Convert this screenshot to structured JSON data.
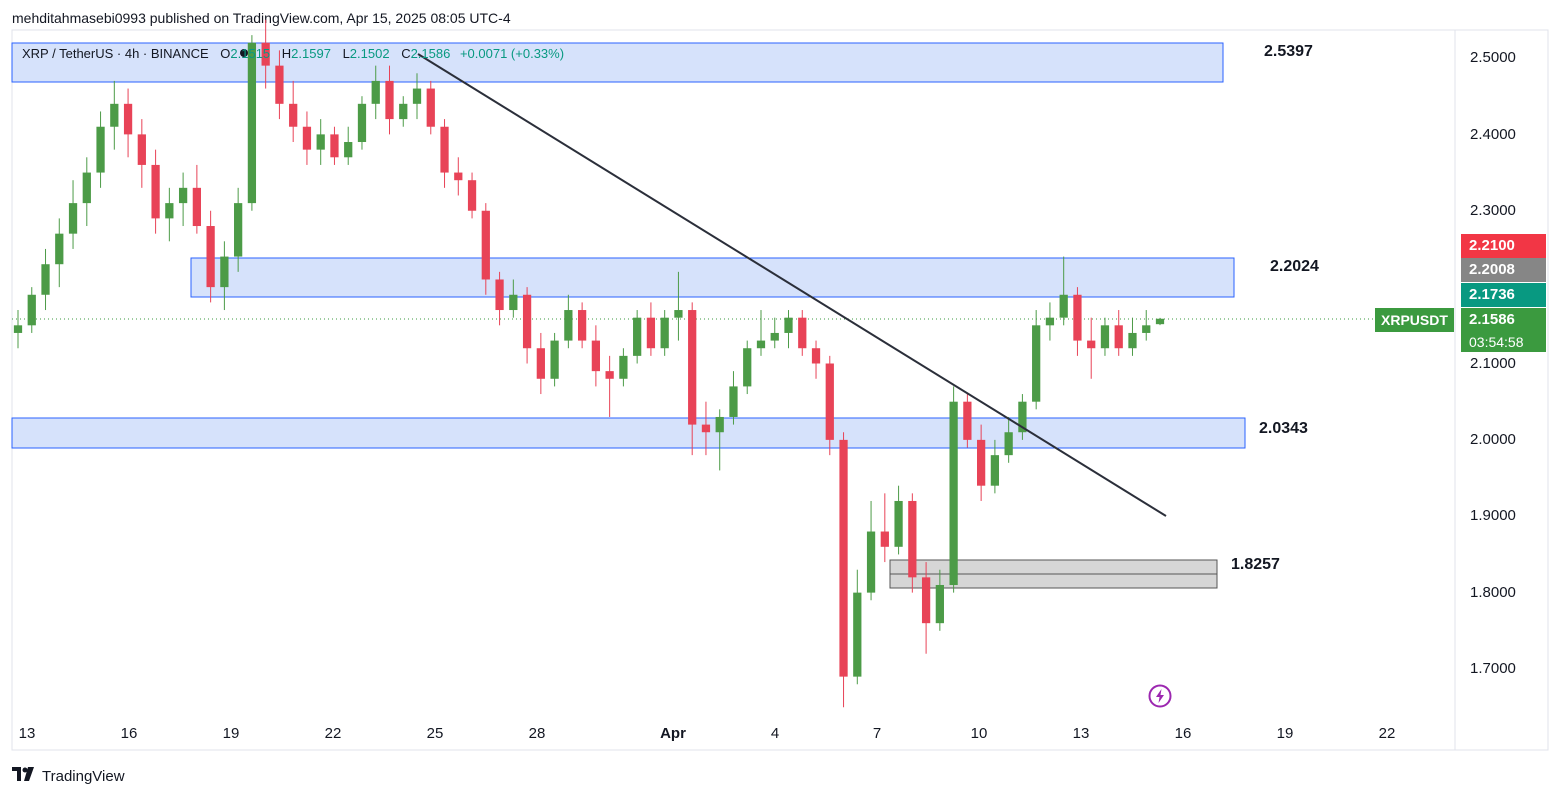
{
  "header": {
    "publisher": "mehditahmasebi0993 published on TradingView.com, Apr 15, 2025 08:05 UTC-4"
  },
  "legend": {
    "symbol": "XRP / TetherUS · 4h · BINANCE",
    "open_label": "O",
    "open": "2.1515",
    "high_label": "H",
    "high": "2.1597",
    "low_label": "L",
    "low": "2.1502",
    "close_label": "C",
    "close": "2.1586",
    "change": "+0.0071 (+0.33%)"
  },
  "price_axis": {
    "ticks": [
      "2.5000",
      "2.4000",
      "2.3000",
      "2.1000",
      "2.0000",
      "1.9000",
      "1.8000",
      "1.7000"
    ],
    "tags": {
      "red": "2.2100",
      "gray": "2.2008",
      "teal": "2.1736",
      "current": "2.1586",
      "symbol": "XRPUSDT",
      "countdown": "03:54:58"
    }
  },
  "time_axis": {
    "ticks": [
      "13",
      "16",
      "19",
      "22",
      "25",
      "28",
      "Apr",
      "4",
      "7",
      "10",
      "13",
      "16",
      "19",
      "22"
    ]
  },
  "zones": {
    "labels": [
      "2.5397",
      "2.2024",
      "2.0343",
      "1.8257"
    ]
  },
  "colors": {
    "up": "#4c9b47",
    "down": "#e84357",
    "zone_fill": "#d6e2fb",
    "zone_border": "#2962ff",
    "support_fill": "#d6d6d6",
    "trendline": "#2b2f3a",
    "price_green": "#3b9a3f",
    "price_red": "#f23645",
    "price_gray": "#868686",
    "price_teal": "#089981"
  },
  "footer": {
    "brand": "TradingView"
  },
  "chart_data": {
    "type": "candlestick",
    "symbol": "XRP / TetherUS",
    "timeframe": "4h",
    "exchange": "BINANCE",
    "y_range": [
      1.64,
      2.54
    ],
    "x_ticks": [
      "13",
      "16",
      "19",
      "22",
      "25",
      "28",
      "Apr",
      "4",
      "7",
      "10",
      "13",
      "16",
      "19",
      "22"
    ],
    "zones": [
      {
        "label": "2.5397",
        "top": 2.5397,
        "bottom": 2.49,
        "color": "blue"
      },
      {
        "label": "2.2024",
        "top": 2.2024,
        "bottom": 2.15,
        "color": "blue"
      },
      {
        "label": "2.0343",
        "top": 2.0343,
        "bottom": 1.995,
        "color": "blue"
      },
      {
        "label": "1.8257",
        "top": 1.8257,
        "bottom": 1.805,
        "color": "gray"
      }
    ],
    "trendline": {
      "from": {
        "date": "Mar 24",
        "value": 2.52
      },
      "to": {
        "date": "Apr 16",
        "value": 1.9
      }
    },
    "ohlc": [
      {
        "o": 2.14,
        "h": 2.17,
        "l": 2.12,
        "c": 2.15
      },
      {
        "o": 2.15,
        "h": 2.2,
        "l": 2.14,
        "c": 2.19
      },
      {
        "o": 2.19,
        "h": 2.25,
        "l": 2.17,
        "c": 2.23
      },
      {
        "o": 2.23,
        "h": 2.29,
        "l": 2.2,
        "c": 2.27
      },
      {
        "o": 2.27,
        "h": 2.34,
        "l": 2.25,
        "c": 2.31
      },
      {
        "o": 2.31,
        "h": 2.37,
        "l": 2.28,
        "c": 2.35
      },
      {
        "o": 2.35,
        "h": 2.43,
        "l": 2.33,
        "c": 2.41
      },
      {
        "o": 2.41,
        "h": 2.47,
        "l": 2.38,
        "c": 2.44
      },
      {
        "o": 2.44,
        "h": 2.46,
        "l": 2.37,
        "c": 2.4
      },
      {
        "o": 2.4,
        "h": 2.42,
        "l": 2.33,
        "c": 2.36
      },
      {
        "o": 2.36,
        "h": 2.38,
        "l": 2.27,
        "c": 2.29
      },
      {
        "o": 2.29,
        "h": 2.33,
        "l": 2.26,
        "c": 2.31
      },
      {
        "o": 2.31,
        "h": 2.35,
        "l": 2.28,
        "c": 2.33
      },
      {
        "o": 2.33,
        "h": 2.36,
        "l": 2.27,
        "c": 2.28
      },
      {
        "o": 2.28,
        "h": 2.3,
        "l": 2.18,
        "c": 2.2
      },
      {
        "o": 2.2,
        "h": 2.26,
        "l": 2.17,
        "c": 2.24
      },
      {
        "o": 2.24,
        "h": 2.33,
        "l": 2.22,
        "c": 2.31
      },
      {
        "o": 2.31,
        "h": 2.53,
        "l": 2.3,
        "c": 2.52
      },
      {
        "o": 2.52,
        "h": 2.56,
        "l": 2.46,
        "c": 2.49
      },
      {
        "o": 2.49,
        "h": 2.51,
        "l": 2.42,
        "c": 2.44
      },
      {
        "o": 2.44,
        "h": 2.47,
        "l": 2.39,
        "c": 2.41
      },
      {
        "o": 2.41,
        "h": 2.43,
        "l": 2.36,
        "c": 2.38
      },
      {
        "o": 2.38,
        "h": 2.42,
        "l": 2.36,
        "c": 2.4
      },
      {
        "o": 2.4,
        "h": 2.41,
        "l": 2.36,
        "c": 2.37
      },
      {
        "o": 2.37,
        "h": 2.41,
        "l": 2.36,
        "c": 2.39
      },
      {
        "o": 2.39,
        "h": 2.45,
        "l": 2.38,
        "c": 2.44
      },
      {
        "o": 2.44,
        "h": 2.49,
        "l": 2.42,
        "c": 2.47
      },
      {
        "o": 2.47,
        "h": 2.49,
        "l": 2.4,
        "c": 2.42
      },
      {
        "o": 2.42,
        "h": 2.45,
        "l": 2.41,
        "c": 2.44
      },
      {
        "o": 2.44,
        "h": 2.48,
        "l": 2.42,
        "c": 2.46
      },
      {
        "o": 2.46,
        "h": 2.47,
        "l": 2.4,
        "c": 2.41
      },
      {
        "o": 2.41,
        "h": 2.42,
        "l": 2.33,
        "c": 2.35
      },
      {
        "o": 2.35,
        "h": 2.37,
        "l": 2.32,
        "c": 2.34
      },
      {
        "o": 2.34,
        "h": 2.35,
        "l": 2.29,
        "c": 2.3
      },
      {
        "o": 2.3,
        "h": 2.31,
        "l": 2.19,
        "c": 2.21
      },
      {
        "o": 2.21,
        "h": 2.22,
        "l": 2.15,
        "c": 2.17
      },
      {
        "o": 2.17,
        "h": 2.21,
        "l": 2.16,
        "c": 2.19
      },
      {
        "o": 2.19,
        "h": 2.2,
        "l": 2.1,
        "c": 2.12
      },
      {
        "o": 2.12,
        "h": 2.14,
        "l": 2.06,
        "c": 2.08
      },
      {
        "o": 2.08,
        "h": 2.14,
        "l": 2.07,
        "c": 2.13
      },
      {
        "o": 2.13,
        "h": 2.19,
        "l": 2.12,
        "c": 2.17
      },
      {
        "o": 2.17,
        "h": 2.18,
        "l": 2.12,
        "c": 2.13
      },
      {
        "o": 2.13,
        "h": 2.15,
        "l": 2.07,
        "c": 2.09
      },
      {
        "o": 2.09,
        "h": 2.11,
        "l": 2.03,
        "c": 2.08
      },
      {
        "o": 2.08,
        "h": 2.12,
        "l": 2.07,
        "c": 2.11
      },
      {
        "o": 2.11,
        "h": 2.17,
        "l": 2.1,
        "c": 2.16
      },
      {
        "o": 2.16,
        "h": 2.18,
        "l": 2.11,
        "c": 2.12
      },
      {
        "o": 2.12,
        "h": 2.17,
        "l": 2.11,
        "c": 2.16
      },
      {
        "o": 2.16,
        "h": 2.22,
        "l": 2.13,
        "c": 2.17
      },
      {
        "o": 2.17,
        "h": 2.18,
        "l": 1.98,
        "c": 2.02
      },
      {
        "o": 2.02,
        "h": 2.05,
        "l": 1.98,
        "c": 2.01
      },
      {
        "o": 2.01,
        "h": 2.04,
        "l": 1.96,
        "c": 2.03
      },
      {
        "o": 2.03,
        "h": 2.09,
        "l": 2.02,
        "c": 2.07
      },
      {
        "o": 2.07,
        "h": 2.13,
        "l": 2.06,
        "c": 2.12
      },
      {
        "o": 2.12,
        "h": 2.17,
        "l": 2.11,
        "c": 2.13
      },
      {
        "o": 2.13,
        "h": 2.16,
        "l": 2.12,
        "c": 2.14
      },
      {
        "o": 2.14,
        "h": 2.17,
        "l": 2.12,
        "c": 2.16
      },
      {
        "o": 2.16,
        "h": 2.17,
        "l": 2.11,
        "c": 2.12
      },
      {
        "o": 2.12,
        "h": 2.13,
        "l": 2.08,
        "c": 2.1
      },
      {
        "o": 2.1,
        "h": 2.11,
        "l": 1.98,
        "c": 2.0
      },
      {
        "o": 2.0,
        "h": 2.01,
        "l": 1.65,
        "c": 1.69
      },
      {
        "o": 1.69,
        "h": 1.83,
        "l": 1.68,
        "c": 1.8
      },
      {
        "o": 1.8,
        "h": 1.92,
        "l": 1.79,
        "c": 1.88
      },
      {
        "o": 1.88,
        "h": 1.93,
        "l": 1.84,
        "c": 1.86
      },
      {
        "o": 1.86,
        "h": 1.94,
        "l": 1.85,
        "c": 1.92
      },
      {
        "o": 1.92,
        "h": 1.93,
        "l": 1.8,
        "c": 1.82
      },
      {
        "o": 1.82,
        "h": 1.84,
        "l": 1.72,
        "c": 1.76
      },
      {
        "o": 1.76,
        "h": 1.83,
        "l": 1.75,
        "c": 1.81
      },
      {
        "o": 1.81,
        "h": 2.07,
        "l": 1.8,
        "c": 2.05
      },
      {
        "o": 2.05,
        "h": 2.06,
        "l": 1.99,
        "c": 2.0
      },
      {
        "o": 2.0,
        "h": 2.02,
        "l": 1.92,
        "c": 1.94
      },
      {
        "o": 1.94,
        "h": 2.0,
        "l": 1.93,
        "c": 1.98
      },
      {
        "o": 1.98,
        "h": 2.03,
        "l": 1.97,
        "c": 2.01
      },
      {
        "o": 2.01,
        "h": 2.06,
        "l": 2.0,
        "c": 2.05
      },
      {
        "o": 2.05,
        "h": 2.17,
        "l": 2.04,
        "c": 2.15
      },
      {
        "o": 2.15,
        "h": 2.18,
        "l": 2.13,
        "c": 2.16
      },
      {
        "o": 2.16,
        "h": 2.24,
        "l": 2.15,
        "c": 2.19
      },
      {
        "o": 2.19,
        "h": 2.2,
        "l": 2.11,
        "c": 2.13
      },
      {
        "o": 2.13,
        "h": 2.16,
        "l": 2.08,
        "c": 2.12
      },
      {
        "o": 2.12,
        "h": 2.16,
        "l": 2.11,
        "c": 2.15
      },
      {
        "o": 2.15,
        "h": 2.17,
        "l": 2.11,
        "c": 2.12
      },
      {
        "o": 2.12,
        "h": 2.16,
        "l": 2.11,
        "c": 2.14
      },
      {
        "o": 2.14,
        "h": 2.17,
        "l": 2.13,
        "c": 2.15
      },
      {
        "o": 2.1515,
        "h": 2.1597,
        "l": 2.1502,
        "c": 2.1586
      }
    ]
  }
}
